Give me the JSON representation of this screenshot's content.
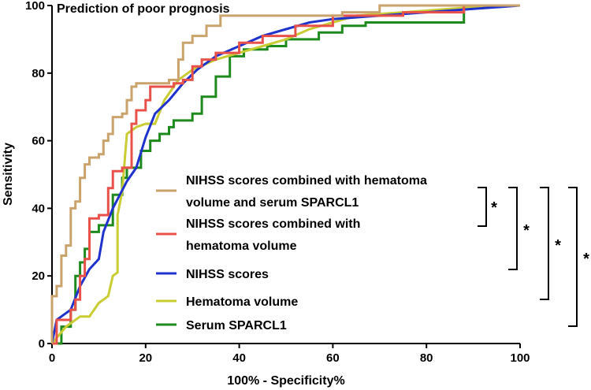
{
  "chart_data": {
    "type": "line",
    "title": "Prediction of poor prognosis",
    "xlabel": "100% - Specificity%",
    "ylabel": "Sensitivity",
    "xlim": [
      0,
      100
    ],
    "ylim": [
      0,
      100
    ],
    "xticks": [
      0,
      20,
      40,
      60,
      80,
      100
    ],
    "yticks": [
      0,
      20,
      40,
      60,
      80,
      100
    ],
    "grid": false,
    "legend_position": "center-right",
    "series": [
      {
        "name": "NIHSS scores combined with hematoma volume and serum SPARCL1",
        "color": "#c9a36b",
        "step": true,
        "points": [
          [
            0,
            0
          ],
          [
            0,
            14
          ],
          [
            1,
            14
          ],
          [
            1,
            17
          ],
          [
            2,
            17
          ],
          [
            2,
            26
          ],
          [
            3,
            26
          ],
          [
            3,
            29
          ],
          [
            4,
            29
          ],
          [
            4,
            40
          ],
          [
            5,
            40
          ],
          [
            5,
            42
          ],
          [
            6,
            42
          ],
          [
            6,
            49
          ],
          [
            7,
            49
          ],
          [
            7,
            53
          ],
          [
            8,
            53
          ],
          [
            8,
            55
          ],
          [
            10,
            55
          ],
          [
            10,
            56
          ],
          [
            11,
            56
          ],
          [
            11,
            60
          ],
          [
            12,
            60
          ],
          [
            12,
            62
          ],
          [
            13,
            62
          ],
          [
            13,
            67
          ],
          [
            15,
            67
          ],
          [
            15,
            68
          ],
          [
            16,
            68
          ],
          [
            16,
            72
          ],
          [
            17,
            72
          ],
          [
            17,
            76
          ],
          [
            18,
            76
          ],
          [
            18,
            77
          ],
          [
            25,
            77
          ],
          [
            25,
            78
          ],
          [
            27,
            78
          ],
          [
            27,
            84
          ],
          [
            28,
            84
          ],
          [
            28,
            89
          ],
          [
            30,
            89
          ],
          [
            30,
            91
          ],
          [
            33,
            91
          ],
          [
            33,
            94
          ],
          [
            36,
            94
          ],
          [
            36,
            97
          ],
          [
            48,
            97
          ],
          [
            48,
            97
          ],
          [
            62,
            97
          ],
          [
            62,
            98
          ],
          [
            70,
            98
          ],
          [
            70,
            100
          ],
          [
            100,
            100
          ]
        ]
      },
      {
        "name": "NIHSS scores combined with hematoma volume",
        "color": "#e8504a",
        "step": true,
        "points": [
          [
            0,
            0
          ],
          [
            1,
            0
          ],
          [
            1,
            7
          ],
          [
            4,
            7
          ],
          [
            4,
            10
          ],
          [
            5,
            10
          ],
          [
            5,
            13
          ],
          [
            6,
            13
          ],
          [
            6,
            20
          ],
          [
            7,
            20
          ],
          [
            7,
            25
          ],
          [
            8,
            25
          ],
          [
            8,
            37
          ],
          [
            10,
            37
          ],
          [
            10,
            38
          ],
          [
            12,
            38
          ],
          [
            12,
            46
          ],
          [
            13,
            46
          ],
          [
            13,
            51
          ],
          [
            15,
            51
          ],
          [
            15,
            52
          ],
          [
            17,
            52
          ],
          [
            17,
            65
          ],
          [
            18,
            65
          ],
          [
            18,
            69
          ],
          [
            20,
            69
          ],
          [
            20,
            72
          ],
          [
            21,
            72
          ],
          [
            21,
            76
          ],
          [
            26,
            76
          ],
          [
            26,
            77
          ],
          [
            28,
            77
          ],
          [
            28,
            78
          ],
          [
            30,
            78
          ],
          [
            30,
            82
          ],
          [
            32,
            82
          ],
          [
            32,
            84
          ],
          [
            35,
            84
          ],
          [
            35,
            86
          ],
          [
            40,
            86
          ],
          [
            40,
            89
          ],
          [
            45,
            89
          ],
          [
            45,
            91
          ],
          [
            52,
            91
          ],
          [
            52,
            94
          ],
          [
            60,
            94
          ],
          [
            60,
            97
          ],
          [
            75,
            97
          ],
          [
            75,
            98
          ],
          [
            88,
            98
          ],
          [
            88,
            100
          ],
          [
            100,
            100
          ]
        ]
      },
      {
        "name": "NIHSS scores",
        "color": "#1f33cc",
        "step": false,
        "points": [
          [
            0,
            0
          ],
          [
            1,
            7
          ],
          [
            4,
            10
          ],
          [
            6,
            17
          ],
          [
            8,
            22
          ],
          [
            10,
            25
          ],
          [
            11,
            33
          ],
          [
            13,
            40
          ],
          [
            16,
            48
          ],
          [
            18,
            52
          ],
          [
            20,
            61
          ],
          [
            22,
            68
          ],
          [
            25,
            72
          ],
          [
            28,
            77
          ],
          [
            31,
            81
          ],
          [
            35,
            85
          ],
          [
            40,
            88
          ],
          [
            45,
            91
          ],
          [
            50,
            93
          ],
          [
            55,
            95
          ],
          [
            60,
            96
          ],
          [
            70,
            97
          ],
          [
            80,
            98
          ],
          [
            90,
            99
          ],
          [
            100,
            100
          ]
        ]
      },
      {
        "name": "Hematoma volume",
        "color": "#c9cc33",
        "step": false,
        "points": [
          [
            0,
            0
          ],
          [
            3,
            5
          ],
          [
            6,
            8
          ],
          [
            8,
            8
          ],
          [
            10,
            12
          ],
          [
            12,
            14
          ],
          [
            13,
            20
          ],
          [
            14,
            21
          ],
          [
            14,
            38
          ],
          [
            15,
            45
          ],
          [
            16,
            62
          ],
          [
            18,
            64
          ],
          [
            20,
            65
          ],
          [
            22,
            65
          ],
          [
            24,
            72
          ],
          [
            27,
            78
          ],
          [
            30,
            81
          ],
          [
            35,
            84
          ],
          [
            40,
            86
          ],
          [
            45,
            88
          ],
          [
            50,
            90
          ],
          [
            55,
            93
          ],
          [
            60,
            95
          ],
          [
            65,
            97
          ],
          [
            75,
            98
          ],
          [
            85,
            99
          ],
          [
            95,
            100
          ],
          [
            100,
            100
          ]
        ]
      },
      {
        "name": "Serum SPARCL1",
        "color": "#1e8a1e",
        "step": true,
        "points": [
          [
            0,
            0
          ],
          [
            2,
            0
          ],
          [
            2,
            5
          ],
          [
            4,
            5
          ],
          [
            4,
            10
          ],
          [
            5,
            10
          ],
          [
            5,
            20
          ],
          [
            6,
            20
          ],
          [
            6,
            24
          ],
          [
            7,
            24
          ],
          [
            7,
            28
          ],
          [
            8,
            28
          ],
          [
            8,
            33
          ],
          [
            10,
            33
          ],
          [
            10,
            35
          ],
          [
            13,
            35
          ],
          [
            13,
            44
          ],
          [
            15,
            44
          ],
          [
            15,
            49
          ],
          [
            16,
            49
          ],
          [
            16,
            52
          ],
          [
            19,
            52
          ],
          [
            19,
            57
          ],
          [
            21,
            57
          ],
          [
            21,
            60
          ],
          [
            23,
            60
          ],
          [
            23,
            62
          ],
          [
            25,
            62
          ],
          [
            25,
            64
          ],
          [
            26,
            64
          ],
          [
            26,
            66
          ],
          [
            30,
            66
          ],
          [
            30,
            68
          ],
          [
            32,
            68
          ],
          [
            32,
            73
          ],
          [
            35,
            73
          ],
          [
            35,
            79
          ],
          [
            38,
            79
          ],
          [
            38,
            85
          ],
          [
            41,
            85
          ],
          [
            41,
            87
          ],
          [
            46,
            87
          ],
          [
            46,
            88
          ],
          [
            50,
            88
          ],
          [
            50,
            90
          ],
          [
            57,
            90
          ],
          [
            57,
            92
          ],
          [
            62,
            92
          ],
          [
            62,
            94
          ],
          [
            67,
            94
          ],
          [
            67,
            95
          ],
          [
            88,
            95
          ],
          [
            88,
            100
          ],
          [
            100,
            100
          ]
        ]
      }
    ],
    "significance": [
      {
        "label": "*"
      },
      {
        "label": "*"
      },
      {
        "label": "*"
      },
      {
        "label": "*"
      }
    ]
  }
}
